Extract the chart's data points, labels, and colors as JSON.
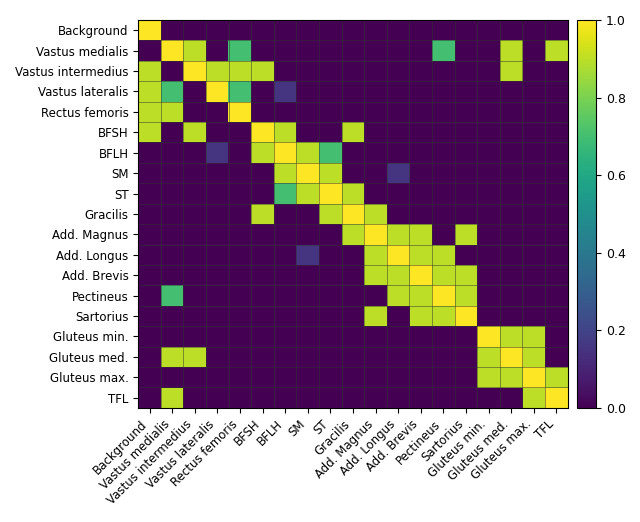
{
  "labels": [
    "Background",
    "Vastus medialis",
    "Vastus intermedius",
    "Vastus lateralis",
    "Rectus femoris",
    "BFSH",
    "BFLH",
    "SM",
    "ST",
    "Gracilis",
    "Add. Magnus",
    "Add. Longus",
    "Add. Brevis",
    "Pectineus",
    "Sartorius",
    "Gluteus min.",
    "Gluteus med.",
    "Gluteus max.",
    "TFL"
  ],
  "matrix": [
    [
      1.0,
      0.0,
      0.0,
      0.0,
      0.0,
      0.0,
      0.0,
      0.0,
      0.0,
      0.0,
      0.0,
      0.0,
      0.0,
      0.0,
      0.0,
      0.0,
      0.0,
      0.0,
      0.0
    ],
    [
      0.0,
      1.0,
      0.9,
      0.0,
      0.7,
      0.0,
      0.0,
      0.0,
      0.0,
      0.0,
      0.0,
      0.0,
      0.0,
      0.7,
      0.0,
      0.0,
      0.9,
      0.0,
      0.9
    ],
    [
      0.9,
      0.0,
      1.0,
      0.9,
      0.9,
      0.9,
      0.0,
      0.0,
      0.0,
      0.0,
      0.0,
      0.0,
      0.0,
      0.0,
      0.0,
      0.0,
      0.9,
      0.0,
      0.0
    ],
    [
      0.9,
      0.7,
      0.0,
      1.0,
      0.7,
      0.0,
      0.15,
      0.0,
      0.0,
      0.0,
      0.0,
      0.0,
      0.0,
      0.0,
      0.0,
      0.0,
      0.0,
      0.0,
      0.0
    ],
    [
      0.9,
      0.9,
      0.0,
      0.0,
      1.0,
      0.0,
      0.0,
      0.0,
      0.0,
      0.0,
      0.0,
      0.0,
      0.0,
      0.0,
      0.0,
      0.0,
      0.0,
      0.0,
      0.0
    ],
    [
      0.9,
      0.0,
      0.9,
      0.0,
      0.0,
      1.0,
      0.9,
      0.0,
      0.0,
      0.9,
      0.0,
      0.0,
      0.0,
      0.0,
      0.0,
      0.0,
      0.0,
      0.0,
      0.0
    ],
    [
      0.0,
      0.0,
      0.0,
      0.15,
      0.0,
      0.9,
      1.0,
      0.9,
      0.7,
      0.0,
      0.0,
      0.0,
      0.0,
      0.0,
      0.0,
      0.0,
      0.0,
      0.0,
      0.0
    ],
    [
      0.0,
      0.0,
      0.0,
      0.0,
      0.0,
      0.0,
      0.9,
      1.0,
      0.9,
      0.0,
      0.0,
      0.15,
      0.0,
      0.0,
      0.0,
      0.0,
      0.0,
      0.0,
      0.0
    ],
    [
      0.0,
      0.0,
      0.0,
      0.0,
      0.0,
      0.0,
      0.7,
      0.9,
      1.0,
      0.9,
      0.0,
      0.0,
      0.0,
      0.0,
      0.0,
      0.0,
      0.0,
      0.0,
      0.0
    ],
    [
      0.0,
      0.0,
      0.0,
      0.0,
      0.0,
      0.9,
      0.0,
      0.0,
      0.9,
      1.0,
      0.9,
      0.0,
      0.0,
      0.0,
      0.0,
      0.0,
      0.0,
      0.0,
      0.0
    ],
    [
      0.0,
      0.0,
      0.0,
      0.0,
      0.0,
      0.0,
      0.0,
      0.0,
      0.0,
      0.9,
      1.0,
      0.9,
      0.9,
      0.0,
      0.9,
      0.0,
      0.0,
      0.0,
      0.0
    ],
    [
      0.0,
      0.0,
      0.0,
      0.0,
      0.0,
      0.0,
      0.0,
      0.15,
      0.0,
      0.0,
      0.9,
      1.0,
      0.9,
      0.9,
      0.0,
      0.0,
      0.0,
      0.0,
      0.0
    ],
    [
      0.0,
      0.0,
      0.0,
      0.0,
      0.0,
      0.0,
      0.0,
      0.0,
      0.0,
      0.0,
      0.9,
      0.9,
      1.0,
      0.9,
      0.9,
      0.0,
      0.0,
      0.0,
      0.0
    ],
    [
      0.0,
      0.7,
      0.0,
      0.0,
      0.0,
      0.0,
      0.0,
      0.0,
      0.0,
      0.0,
      0.0,
      0.9,
      0.9,
      1.0,
      0.9,
      0.0,
      0.0,
      0.0,
      0.0
    ],
    [
      0.0,
      0.0,
      0.0,
      0.0,
      0.0,
      0.0,
      0.0,
      0.0,
      0.0,
      0.0,
      0.9,
      0.0,
      0.9,
      0.9,
      1.0,
      0.0,
      0.0,
      0.0,
      0.0
    ],
    [
      0.0,
      0.0,
      0.0,
      0.0,
      0.0,
      0.0,
      0.0,
      0.0,
      0.0,
      0.0,
      0.0,
      0.0,
      0.0,
      0.0,
      0.0,
      1.0,
      0.9,
      0.9,
      0.0
    ],
    [
      0.0,
      0.9,
      0.9,
      0.0,
      0.0,
      0.0,
      0.0,
      0.0,
      0.0,
      0.0,
      0.0,
      0.0,
      0.0,
      0.0,
      0.0,
      0.9,
      1.0,
      0.9,
      0.0
    ],
    [
      0.0,
      0.0,
      0.0,
      0.0,
      0.0,
      0.0,
      0.0,
      0.0,
      0.0,
      0.0,
      0.0,
      0.0,
      0.0,
      0.0,
      0.0,
      0.9,
      0.9,
      1.0,
      0.9
    ],
    [
      0.0,
      0.9,
      0.0,
      0.0,
      0.0,
      0.0,
      0.0,
      0.0,
      0.0,
      0.0,
      0.0,
      0.0,
      0.0,
      0.0,
      0.0,
      0.0,
      0.0,
      0.9,
      1.0
    ]
  ],
  "cmap": "viridis",
  "vmin": 0.0,
  "vmax": 1.0,
  "figsize": [
    6.4,
    5.22
  ],
  "dpi": 100,
  "colorbar_ticks": [
    0.0,
    0.2,
    0.4,
    0.6,
    0.8,
    1.0
  ],
  "colorbar_ticklabels": [
    "0.0",
    "0.2",
    "0.4",
    "0.6",
    "0.8",
    "1.0"
  ],
  "ylabel_fontsize": 8.5,
  "xlabel_fontsize": 8.5,
  "tick_fontsize": 9
}
